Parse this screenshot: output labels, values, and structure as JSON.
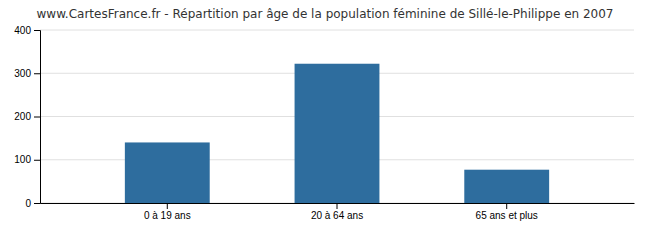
{
  "chart_data": {
    "type": "bar",
    "title": "www.CartesFrance.fr - Répartition par âge de la population féminine de Sillé-le-Philippe en 2007",
    "categories": [
      "0 à 19 ans",
      "20 à 64 ans",
      "65 ans et plus"
    ],
    "values": [
      140,
      322,
      77
    ],
    "color": "#2e6d9e",
    "ylim": [
      0,
      400
    ],
    "yticks": [
      0,
      100,
      200,
      300,
      400
    ],
    "grid": true
  }
}
